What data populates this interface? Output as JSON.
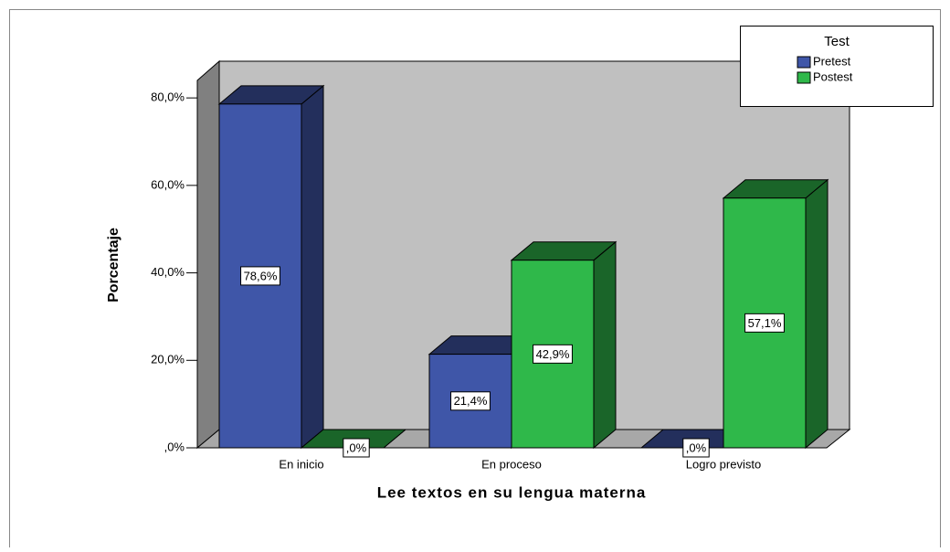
{
  "chart_data": {
    "type": "bar3d",
    "x_label": "Lee textos en su lengua materna",
    "y_label": "Porcentaje",
    "legend_title": "Test",
    "legend_position": "top-right",
    "categories": [
      "En inicio",
      "En proceso",
      "Logro previsto"
    ],
    "series": [
      {
        "name": "Pretest",
        "color": "#3f56a8",
        "values": [
          78.6,
          21.4,
          0
        ],
        "value_labels": [
          "78,6%",
          "21,4%",
          ",0%"
        ]
      },
      {
        "name": "Postest",
        "color": "#2fb84a",
        "values": [
          0,
          42.9,
          57.1
        ],
        "value_labels": [
          ",0%",
          "42,9%",
          "57,1%"
        ]
      }
    ],
    "ylim": [
      0,
      84
    ],
    "yticks": [
      {
        "value": 0,
        "label": ",0%"
      },
      {
        "value": 20,
        "label": "20,0%"
      },
      {
        "value": 40,
        "label": "40,0%"
      },
      {
        "value": 60,
        "label": "60,0%"
      },
      {
        "value": 80,
        "label": "80,0%"
      }
    ]
  }
}
